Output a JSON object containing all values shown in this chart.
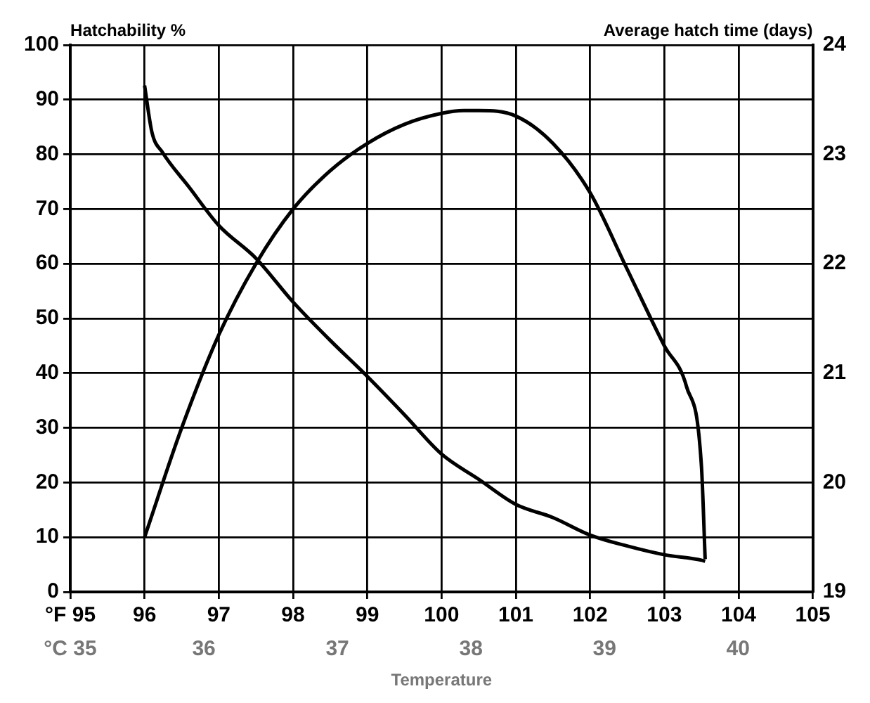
{
  "chart_data": {
    "type": "line",
    "xlabel": "Temperature",
    "ylabel": "Hatchability %",
    "y2label": "Average hatch time (days)",
    "xlim": [
      95,
      105
    ],
    "xticks": [
      {
        "value": 95,
        "label": "°F 95"
      },
      96,
      97,
      98,
      99,
      100,
      101,
      102,
      103,
      104,
      105
    ],
    "x2lim": [
      35,
      40.56
    ],
    "x2ticks": [
      {
        "value": 35,
        "label": "°C 35"
      },
      36,
      37,
      38,
      39,
      40
    ],
    "ylim": [
      0,
      100
    ],
    "yticks": [
      0,
      10,
      20,
      30,
      40,
      50,
      60,
      70,
      80,
      90,
      100
    ],
    "y2lim": [
      19,
      24
    ],
    "y2ticks": [
      19,
      20,
      21,
      22,
      23,
      24
    ],
    "grid": true,
    "legend": false,
    "marker": "none",
    "line_style": "solid",
    "series": [
      {
        "color": "#000000",
        "x": [
          96,
          96.5,
          97,
          97.5,
          98,
          98.5,
          99,
          99.5,
          100,
          100.3,
          100.5,
          101,
          101.5,
          102,
          102.5,
          103,
          103.3,
          103.5,
          103.55
        ],
        "values": [
          10,
          30,
          47,
          60,
          70,
          77,
          82,
          85.5,
          87.5,
          88,
          88,
          87,
          82,
          73,
          59,
          45,
          37.5,
          23,
          6
        ]
      },
      {
        "color": "#000000",
        "axis": "y2",
        "x": [
          96,
          96.1,
          96.24,
          96.6,
          97,
          97.5,
          98,
          98.5,
          99,
          99.5,
          100,
          100.5,
          101,
          101.5,
          102,
          102.5,
          103,
          103.5,
          103.55
        ],
        "values": [
          23.63,
          23.2,
          23.02,
          22.7,
          22.35,
          22.05,
          21.65,
          21.3,
          20.97,
          20.62,
          20.26,
          20.03,
          19.8,
          19.68,
          19.52,
          19.42,
          19.34,
          19.29,
          19.28
        ]
      }
    ]
  }
}
